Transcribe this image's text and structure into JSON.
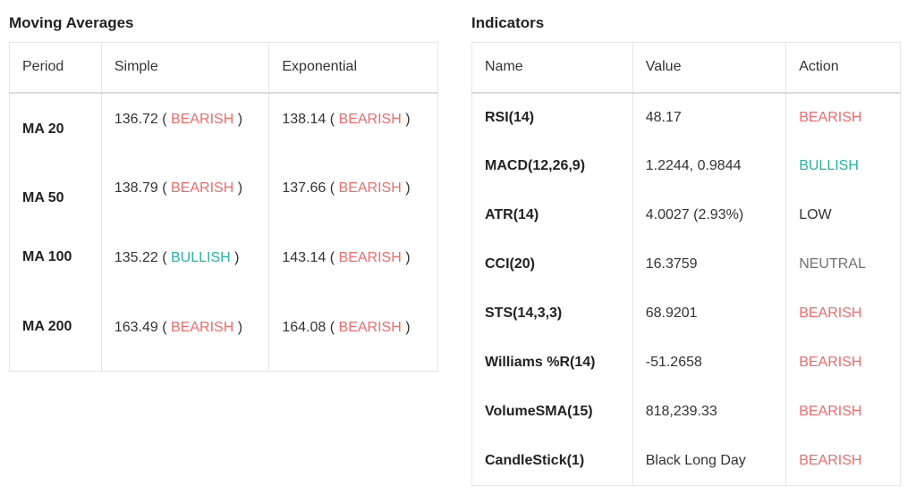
{
  "moving_averages": {
    "title": "Moving Averages",
    "headers": {
      "period": "Period",
      "simple": "Simple",
      "exponential": "Exponential"
    },
    "rows": [
      {
        "period": "MA 20",
        "simple_value": "136.72",
        "simple_signal": "BEARISH",
        "exp_value": "138.14",
        "exp_signal": "BEARISH"
      },
      {
        "period": "MA 50",
        "simple_value": "138.79",
        "simple_signal": "BEARISH",
        "exp_value": "137.66",
        "exp_signal": "BEARISH"
      },
      {
        "period": "MA 100",
        "simple_value": "135.22",
        "simple_signal": "BULLISH",
        "exp_value": "143.14",
        "exp_signal": "BEARISH"
      },
      {
        "period": "MA 200",
        "simple_value": "163.49",
        "simple_signal": "BEARISH",
        "exp_value": "164.08",
        "exp_signal": "BEARISH"
      }
    ]
  },
  "indicators": {
    "title": "Indicators",
    "headers": {
      "name": "Name",
      "value": "Value",
      "action": "Action"
    },
    "rows": [
      {
        "name": "RSI(14)",
        "value": "48.17",
        "action": "BEARISH"
      },
      {
        "name": "MACD(12,26,9)",
        "value": "1.2244, 0.9844",
        "action": "BULLISH"
      },
      {
        "name": "ATR(14)",
        "value": "4.0027 (2.93%)",
        "action": "LOW"
      },
      {
        "name": "CCI(20)",
        "value": "16.3759",
        "action": "NEUTRAL"
      },
      {
        "name": "STS(14,3,3)",
        "value": "68.9201",
        "action": "BEARISH"
      },
      {
        "name": "Williams %R(14)",
        "value": "-51.2658",
        "action": "BEARISH"
      },
      {
        "name": "VolumeSMA(15)",
        "value": "818,239.33",
        "action": "BEARISH"
      },
      {
        "name": "CandleStick(1)",
        "value": "Black Long Day",
        "action": "BEARISH"
      }
    ]
  },
  "colors": {
    "bearish": "#f06b6b",
    "bullish": "#26b5a0",
    "neutral": "#707070",
    "border": "#e6e6e6"
  }
}
